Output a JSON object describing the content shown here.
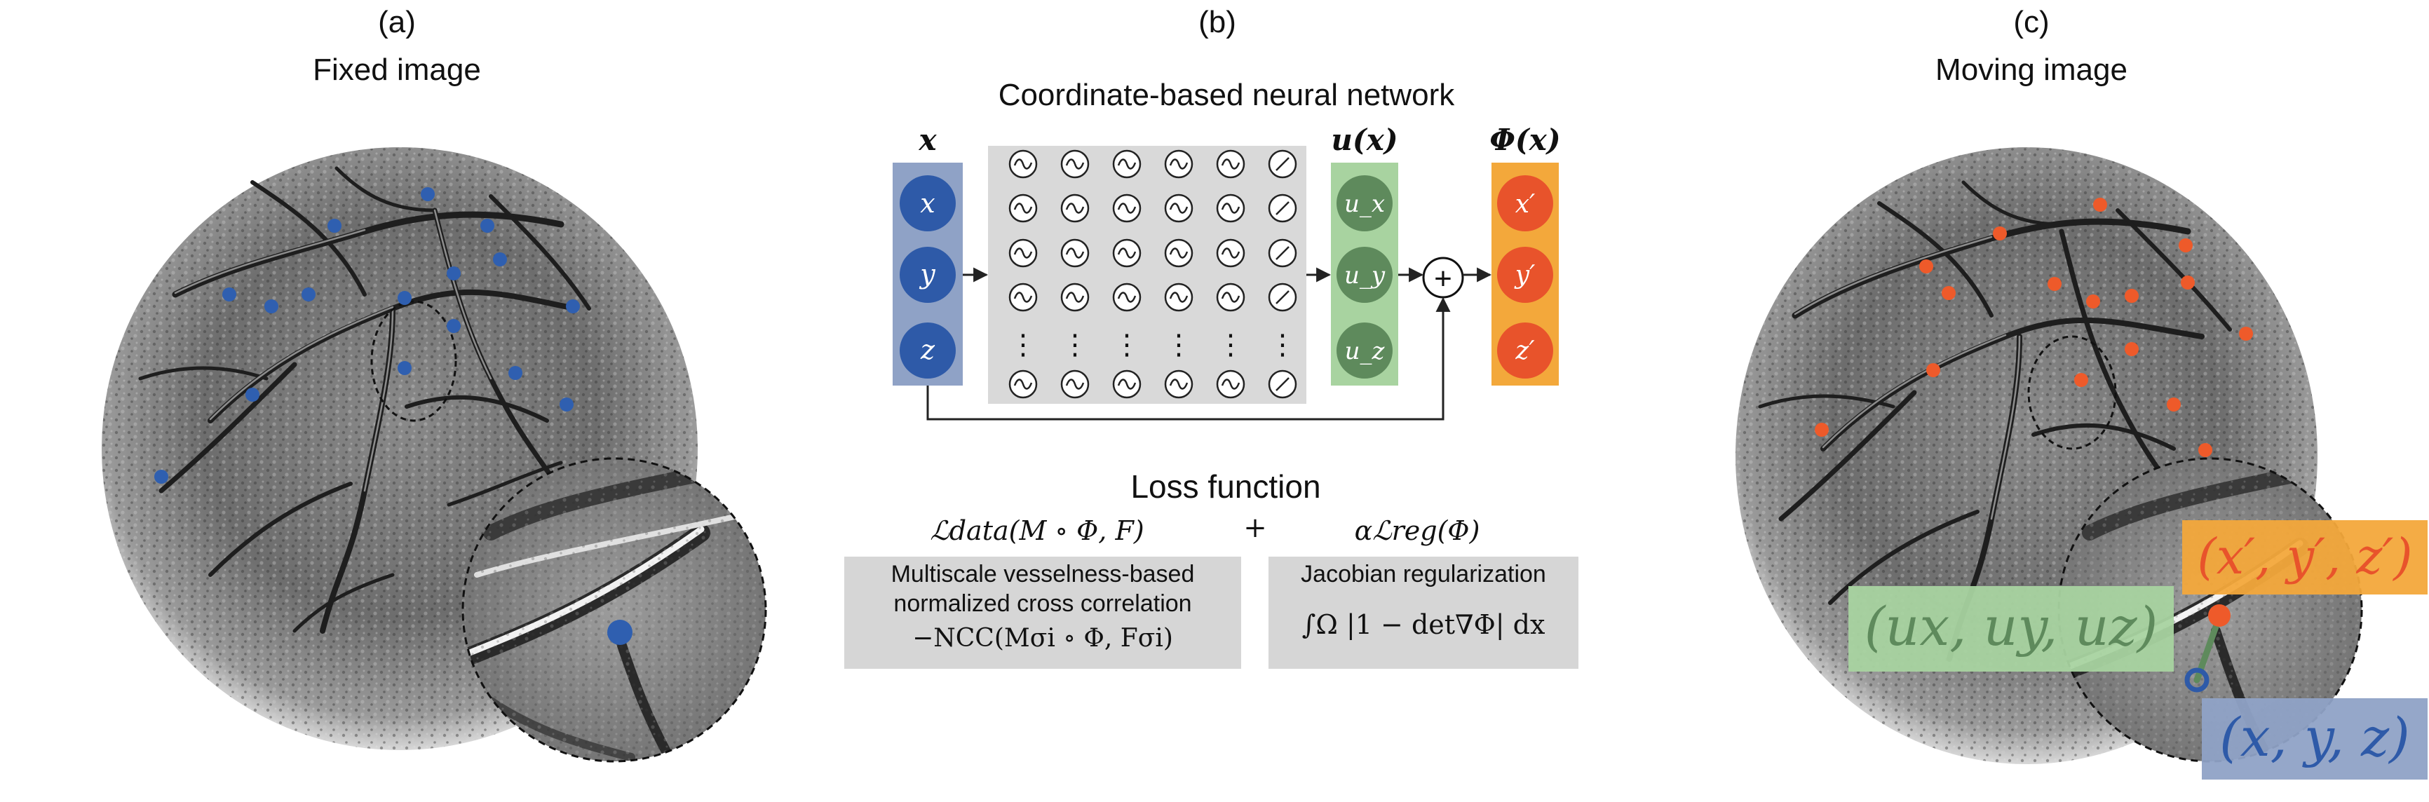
{
  "panels": {
    "a": {
      "letter": "(a)",
      "title": "Fixed image"
    },
    "b": {
      "letter": "(b)",
      "title": "Coordinate-based neural network"
    },
    "c": {
      "letter": "(c)",
      "title": "Moving image"
    }
  },
  "network": {
    "input_header": "x",
    "input_nodes": [
      "x",
      "y",
      "z"
    ],
    "output_header": "u(x)",
    "output_nodes": [
      "u_x",
      "u_y",
      "u_z"
    ],
    "phi_header": "Φ(x)",
    "phi_nodes": [
      "x′",
      "y′",
      "z′"
    ],
    "sum_symbol": "+",
    "ellipsis": "⋮"
  },
  "loss": {
    "title": "Loss function",
    "data_formula": "ℒdata(M ∘ Φ, F)",
    "plus": "+",
    "reg_formula": "αℒreg(Φ)",
    "data_box_line1": "Multiscale vesselness-based",
    "data_box_line2": "normalized cross correlation",
    "data_box_formula": "−NCC(Mσi ∘ Φ, Fσi)",
    "reg_box_title": "Jacobian regularization",
    "reg_box_formula": "∫Ω |1 − det∇Φ| dx"
  },
  "moving_labels": {
    "displacement": "(ux, uy, uz)",
    "target": "(x′, y′, z′)",
    "source": "(x, y, z)"
  },
  "colors": {
    "blue_node": "#2e5aa8",
    "blue_panel": "#8fa2c6",
    "green_node": "#5e8a5c",
    "green_panel": "#a8d3a0",
    "orange_node": "#e8532b",
    "orange_panel": "#f3a83b",
    "hidden_panel": "#d9d9d9",
    "loss_box": "#d6d6d6",
    "fixed_points": "#2f5fb0",
    "moving_points": "#ee5a2a"
  },
  "icons": {
    "hidden_node": "sine-activation-icon",
    "last_node": "linear-activation-icon",
    "sum": "circled-plus-icon"
  }
}
